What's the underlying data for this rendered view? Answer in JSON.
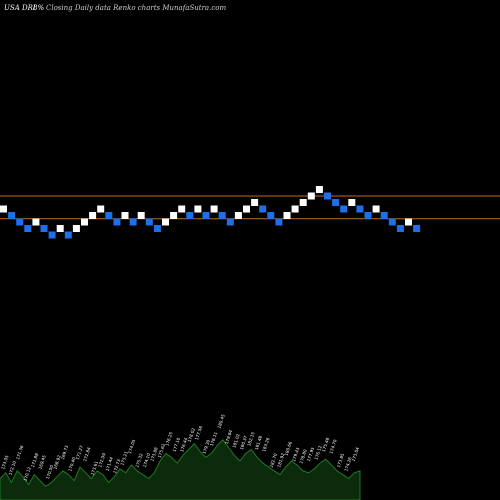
{
  "header": {
    "ticker_text": "USA DRI",
    "change_text": "8%",
    "description": "Closing Daily data  Renko  charts MunafaSutra.com"
  },
  "colors": {
    "background": "#000000",
    "up_brick": "#ffffff",
    "down_brick": "#1e6fe8",
    "reference_line": "#c06a16",
    "volume_fill": "#0c2a0c",
    "volume_stroke": "#1f7a1f",
    "label_text": "#ffffff"
  },
  "chart_data": {
    "type": "renko",
    "bricks": [
      {
        "level": 13,
        "dir": "up"
      },
      {
        "level": 12,
        "dir": "down"
      },
      {
        "level": 11,
        "dir": "down"
      },
      {
        "level": 10,
        "dir": "down"
      },
      {
        "level": 11,
        "dir": "up"
      },
      {
        "level": 10,
        "dir": "down"
      },
      {
        "level": 9,
        "dir": "down"
      },
      {
        "level": 10,
        "dir": "up"
      },
      {
        "level": 9,
        "dir": "down"
      },
      {
        "level": 10,
        "dir": "up"
      },
      {
        "level": 11,
        "dir": "up"
      },
      {
        "level": 12,
        "dir": "up"
      },
      {
        "level": 13,
        "dir": "up"
      },
      {
        "level": 12,
        "dir": "down"
      },
      {
        "level": 11,
        "dir": "down"
      },
      {
        "level": 12,
        "dir": "up"
      },
      {
        "level": 11,
        "dir": "down"
      },
      {
        "level": 12,
        "dir": "up"
      },
      {
        "level": 11,
        "dir": "down"
      },
      {
        "level": 10,
        "dir": "down"
      },
      {
        "level": 11,
        "dir": "up"
      },
      {
        "level": 12,
        "dir": "up"
      },
      {
        "level": 13,
        "dir": "up"
      },
      {
        "level": 12,
        "dir": "down"
      },
      {
        "level": 13,
        "dir": "up"
      },
      {
        "level": 12,
        "dir": "down"
      },
      {
        "level": 13,
        "dir": "up"
      },
      {
        "level": 12,
        "dir": "down"
      },
      {
        "level": 11,
        "dir": "down"
      },
      {
        "level": 12,
        "dir": "up"
      },
      {
        "level": 13,
        "dir": "up"
      },
      {
        "level": 14,
        "dir": "up"
      },
      {
        "level": 13,
        "dir": "down"
      },
      {
        "level": 12,
        "dir": "down"
      },
      {
        "level": 11,
        "dir": "down"
      },
      {
        "level": 12,
        "dir": "up"
      },
      {
        "level": 13,
        "dir": "up"
      },
      {
        "level": 14,
        "dir": "up"
      },
      {
        "level": 15,
        "dir": "up"
      },
      {
        "level": 16,
        "dir": "up"
      },
      {
        "level": 15,
        "dir": "down"
      },
      {
        "level": 14,
        "dir": "down"
      },
      {
        "level": 13,
        "dir": "down"
      },
      {
        "level": 14,
        "dir": "up"
      },
      {
        "level": 13,
        "dir": "down"
      },
      {
        "level": 12,
        "dir": "down"
      },
      {
        "level": 13,
        "dir": "up"
      },
      {
        "level": 12,
        "dir": "down"
      },
      {
        "level": 11,
        "dir": "down"
      },
      {
        "level": 10,
        "dir": "down"
      },
      {
        "level": 11,
        "dir": "up"
      },
      {
        "level": 10,
        "dir": "down"
      }
    ],
    "reference_levels": [
      15,
      11.5
    ],
    "volume": [
      22,
      28,
      18,
      30,
      24,
      16,
      26,
      20,
      14,
      18,
      24,
      30,
      26,
      20,
      34,
      28,
      22,
      30,
      26,
      18,
      24,
      32,
      28,
      36,
      30,
      26,
      22,
      28,
      40,
      48,
      44,
      38,
      46,
      52,
      58,
      50,
      44,
      48,
      56,
      62,
      54,
      46,
      40,
      48,
      52,
      44,
      38,
      34,
      30,
      26,
      34,
      40,
      36,
      30,
      28,
      32,
      38,
      42,
      36,
      30,
      26,
      22,
      28,
      30
    ],
    "price_labels": [
      "173.05",
      "172.10",
      "171.36",
      "170.12",
      "171.88",
      "169.45",
      "170.50",
      "168.92",
      "169.73",
      "170.40",
      "171.27",
      "172.84",
      "173.61",
      "172.09",
      "171.44",
      "172.73",
      "173.21",
      "174.05",
      "175.32",
      "174.10",
      "173.88",
      "175.62",
      "176.25",
      "177.10",
      "176.44",
      "178.02",
      "177.56",
      "179.30",
      "178.11",
      "180.45",
      "179.84",
      "181.02",
      "180.37",
      "182.15",
      "181.48",
      "183.26",
      "182.70",
      "181.92",
      "180.66",
      "179.43",
      "178.80",
      "177.95",
      "176.12",
      "175.48",
      "174.70",
      "173.85",
      "174.26",
      "173.04"
    ]
  }
}
